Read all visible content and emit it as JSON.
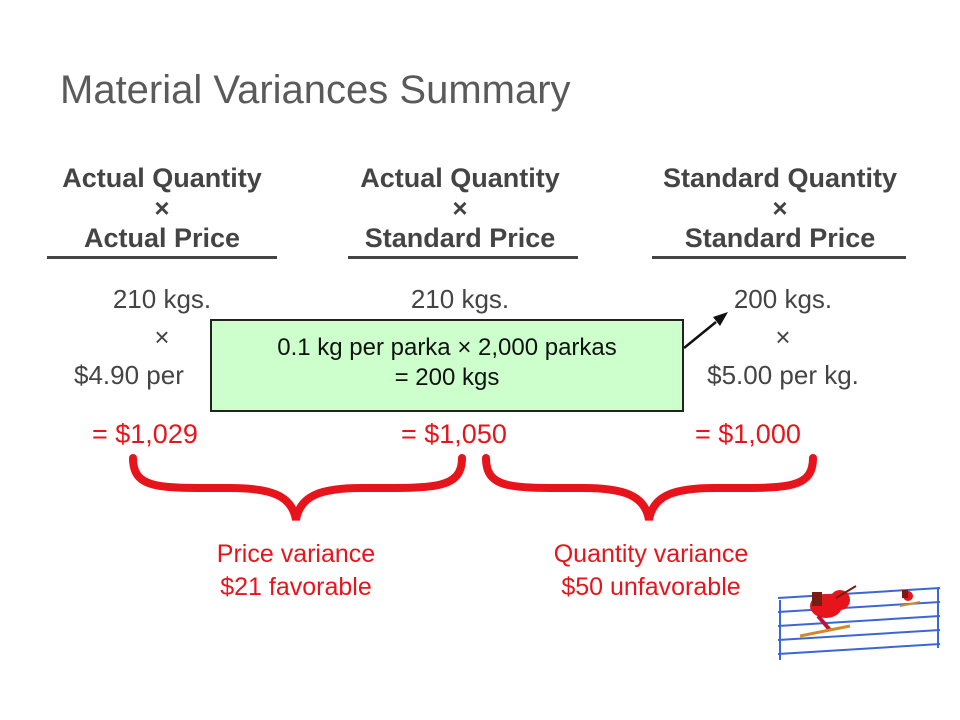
{
  "title": "Material Variances Summary",
  "columns": [
    {
      "header_line1": "Actual Quantity",
      "operator": "×",
      "header_line2": "Actual Price",
      "quantity": "210 kgs.",
      "times": "×",
      "price": "$4.90 per",
      "total": "= $1,029"
    },
    {
      "header_line1": "Actual Quantity",
      "operator": "×",
      "header_line2": "Standard Price",
      "quantity": "210 kgs.",
      "times": "×",
      "price": "",
      "total": "= $1,050"
    },
    {
      "header_line1": "Standard Quantity",
      "operator": "×",
      "header_line2": "Standard Price",
      "quantity": "200 kgs.",
      "times": "×",
      "price": "$5.00 per kg.",
      "total": "= $1,000"
    }
  ],
  "callout": {
    "line1": "0.1 kg per parka × 2,000 parkas",
    "line2": "= 200 kgs"
  },
  "variances": [
    {
      "name": "Price variance",
      "amount": "$21 favorable"
    },
    {
      "name": "Quantity variance",
      "amount": "$50 unfavorable"
    }
  ],
  "colors": {
    "text": "#444444",
    "accent_red": "#e8141c",
    "callout_bg": "#ccffcc"
  },
  "decor": {
    "clipart": "skier-icon"
  }
}
